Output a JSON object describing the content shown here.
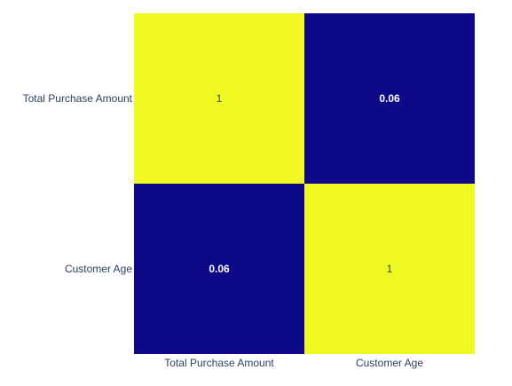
{
  "chart_data": {
    "type": "heatmap",
    "x": [
      "Total Purchase Amount",
      "Customer Age"
    ],
    "y": [
      "Total Purchase Amount",
      "Customer Age"
    ],
    "z": [
      [
        1,
        0.06
      ],
      [
        0.06,
        1
      ]
    ],
    "text": [
      [
        "1",
        "0.06"
      ],
      [
        "0.06",
        "1"
      ]
    ],
    "zlim": [
      0.06,
      1
    ],
    "colorscale": [
      [
        0.0,
        "#0d0887"
      ],
      [
        0.111,
        "#46039f"
      ],
      [
        0.222,
        "#7201a8"
      ],
      [
        0.333,
        "#9c179e"
      ],
      [
        0.444,
        "#bd3786"
      ],
      [
        0.556,
        "#d8576b"
      ],
      [
        0.667,
        "#ed7953"
      ],
      [
        0.778,
        "#fb9f3a"
      ],
      [
        0.889,
        "#fdca26"
      ],
      [
        1.0,
        "#f0f921"
      ]
    ],
    "title": "",
    "xlabel": "",
    "ylabel": "",
    "legend": "none",
    "grid": false,
    "colors": {
      "tick_text": "#2a3f5f",
      "label_on_dark": "#ffffff",
      "label_on_light": "#444444"
    }
  }
}
